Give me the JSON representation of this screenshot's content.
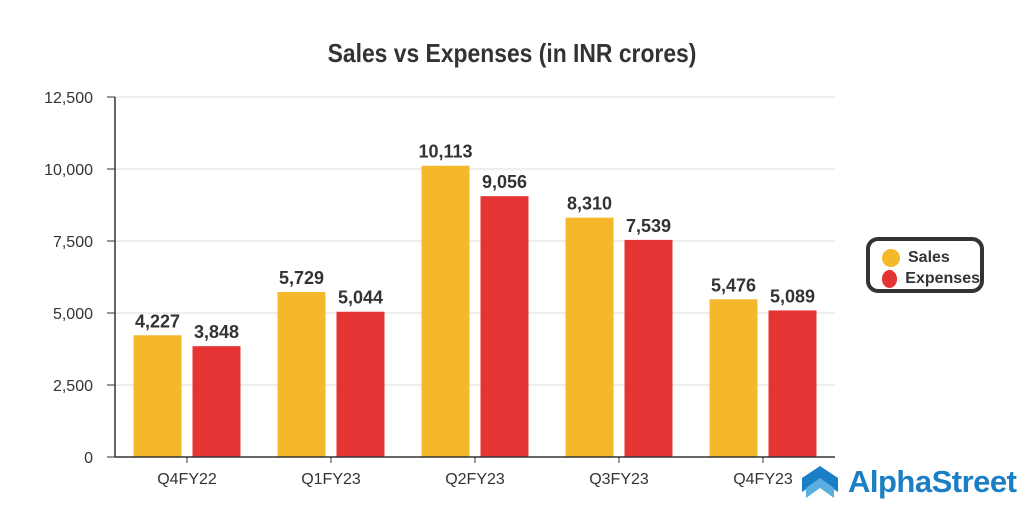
{
  "chart_data": {
    "type": "bar",
    "title": "Sales vs Expenses (in INR crores)",
    "categories": [
      "Q4FY22",
      "Q1FY23",
      "Q2FY23",
      "Q3FY23",
      "Q4FY23"
    ],
    "series": [
      {
        "name": "Sales",
        "color": "#f6b82b",
        "values": [
          4227,
          5729,
          10113,
          8310,
          5476
        ],
        "labels": [
          "4,227",
          "5,729",
          "10,113",
          "8,310",
          "5,476"
        ]
      },
      {
        "name": "Expenses",
        "color": "#e43434",
        "values": [
          3848,
          5044,
          9056,
          7539,
          5089
        ],
        "labels": [
          "3,848",
          "5,044",
          "9,056",
          "7,539",
          "5,089"
        ]
      }
    ],
    "yticks": [
      0,
      2500,
      5000,
      7500,
      10000,
      12500
    ],
    "ytick_labels": [
      "0",
      "2,500",
      "5,000",
      "7,500",
      "10,000",
      "12,500"
    ],
    "ylim": [
      0,
      12500
    ],
    "grid": true,
    "legend_position": "right"
  },
  "brand": {
    "name": "AlphaStreet"
  }
}
